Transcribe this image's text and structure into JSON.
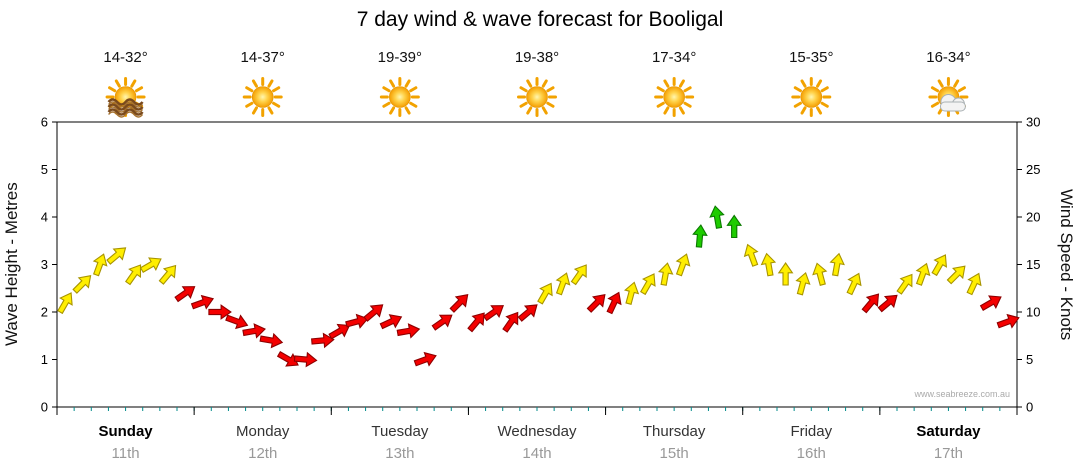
{
  "title": "7 day wind & wave forecast for Booligal",
  "watermark": "www.seabreeze.com.au",
  "axes": {
    "left_title": "Wave Height - Metres",
    "right_title": "Wind Speed - Knots",
    "left_ticks": [
      0,
      1,
      2,
      3,
      4,
      5,
      6
    ],
    "right_ticks": [
      0,
      5,
      10,
      15,
      20,
      25,
      30
    ]
  },
  "days": [
    {
      "name": "Sunday",
      "date": "11th",
      "temp": "14-32°",
      "icon": "sun-waves"
    },
    {
      "name": "Monday",
      "date": "12th",
      "temp": "14-37°",
      "icon": "sunny"
    },
    {
      "name": "Tuesday",
      "date": "13th",
      "temp": "19-39°",
      "icon": "sunny"
    },
    {
      "name": "Wednesday",
      "date": "14th",
      "temp": "19-38°",
      "icon": "sunny"
    },
    {
      "name": "Thursday",
      "date": "15th",
      "temp": "17-34°",
      "icon": "sunny"
    },
    {
      "name": "Friday",
      "date": "16th",
      "temp": "15-35°",
      "icon": "sunny"
    },
    {
      "name": "Saturday",
      "date": "17th",
      "temp": "16-34°",
      "icon": "sun-cloud"
    }
  ],
  "chart_data": {
    "type": "scatter",
    "marker": "wind-arrow",
    "title": "7 day wind & wave forecast for Booligal",
    "x_range_days": [
      0,
      7
    ],
    "ylim_wave": [
      0,
      6
    ],
    "ylim_knots": [
      0,
      30
    ],
    "grid": false,
    "colors": {
      "yellow": "#ffee00",
      "red": "#f40000",
      "green": "#1ecc00"
    },
    "t": [
      0.063,
      0.188,
      0.313,
      0.438,
      0.563,
      0.688,
      0.813,
      0.938,
      1.063,
      1.188,
      1.313,
      1.438,
      1.563,
      1.688,
      1.813,
      1.938,
      2.063,
      2.188,
      2.313,
      2.438,
      2.563,
      2.688,
      2.813,
      2.938,
      3.063,
      3.188,
      3.313,
      3.438,
      3.563,
      3.688,
      3.813,
      3.938,
      4.063,
      4.188,
      4.313,
      4.438,
      4.563,
      4.688,
      4.813,
      4.938,
      5.063,
      5.188,
      5.313,
      5.438,
      5.563,
      5.688,
      5.813,
      5.938,
      6.063,
      6.188,
      6.313,
      6.438,
      6.563,
      6.688,
      6.813,
      6.938
    ],
    "knots": [
      11,
      13,
      15,
      16,
      14,
      15,
      14,
      12,
      11,
      10,
      9,
      8,
      7,
      5,
      5,
      7,
      8,
      9,
      10,
      9,
      8,
      5,
      9,
      11,
      9,
      10,
      9,
      10,
      12,
      13,
      14,
      11,
      11,
      12,
      13,
      14,
      15,
      18,
      20,
      19,
      16,
      15,
      14,
      13,
      14,
      15,
      13,
      11,
      11,
      13,
      14,
      15,
      14,
      13,
      11,
      9
    ],
    "color": [
      "yellow",
      "yellow",
      "yellow",
      "yellow",
      "yellow",
      "yellow",
      "yellow",
      "red",
      "red",
      "red",
      "red",
      "red",
      "red",
      "red",
      "red",
      "red",
      "red",
      "red",
      "red",
      "red",
      "red",
      "red",
      "red",
      "red",
      "red",
      "red",
      "red",
      "red",
      "yellow",
      "yellow",
      "yellow",
      "red",
      "red",
      "yellow",
      "yellow",
      "yellow",
      "yellow",
      "green",
      "green",
      "green",
      "yellow",
      "yellow",
      "yellow",
      "yellow",
      "yellow",
      "yellow",
      "yellow",
      "red",
      "red",
      "yellow",
      "yellow",
      "yellow",
      "yellow",
      "yellow",
      "red",
      "red"
    ],
    "dir": [
      30,
      45,
      20,
      50,
      35,
      60,
      40,
      55,
      70,
      90,
      110,
      80,
      100,
      120,
      95,
      85,
      60,
      75,
      50,
      65,
      80,
      70,
      55,
      45,
      40,
      55,
      35,
      50,
      30,
      20,
      35,
      45,
      25,
      15,
      30,
      10,
      20,
      5,
      -10,
      0,
      -20,
      -10,
      0,
      15,
      -15,
      10,
      25,
      40,
      50,
      35,
      20,
      30,
      45,
      25,
      60,
      70
    ]
  }
}
